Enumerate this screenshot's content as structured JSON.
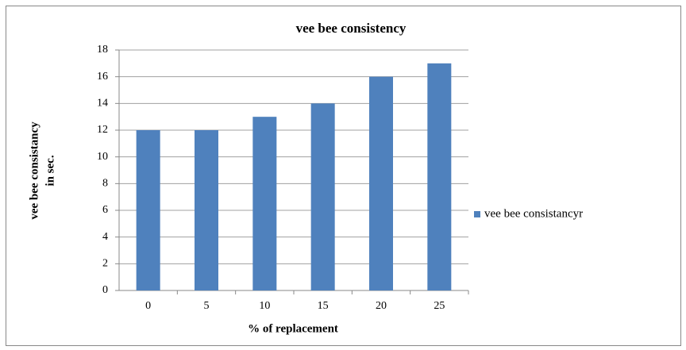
{
  "chart_data": {
    "type": "bar",
    "title": "vee bee consistency",
    "x_label": "% of replacement",
    "y_label": [
      "vee bee consistancy",
      "in sec."
    ],
    "categories": [
      "0",
      "5",
      "10",
      "15",
      "20",
      "25"
    ],
    "series": [
      {
        "name": "vee bee consistancyr",
        "color": "#4f81bd",
        "values": [
          12,
          12,
          13,
          14,
          16,
          17
        ]
      }
    ],
    "ylim": [
      0,
      18
    ],
    "yticks": [
      0,
      2,
      4,
      6,
      8,
      10,
      12,
      14,
      16,
      18
    ],
    "grid": true,
    "legend": "right"
  }
}
